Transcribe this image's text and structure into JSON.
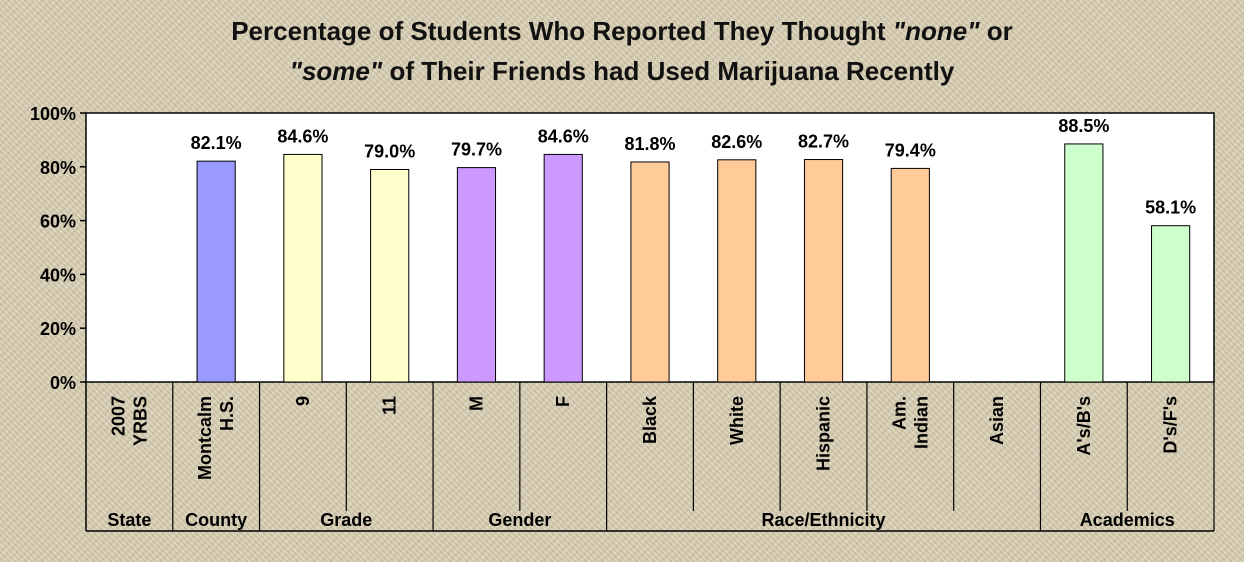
{
  "chart_data": {
    "type": "bar",
    "title_segments": [
      [
        {
          "text": "Percentage of Students Who Reported They Thought ",
          "italic": false
        },
        {
          "text": "\"none\"",
          "italic": true
        },
        {
          "text": " or",
          "italic": false
        }
      ],
      [
        {
          "text": "\"some\"",
          "italic": true
        },
        {
          "text": " of Their Friends had Used Marijuana Recently",
          "italic": false
        }
      ]
    ],
    "ylim": [
      0,
      100
    ],
    "y_ticks": [
      "0%",
      "20%",
      "40%",
      "60%",
      "80%",
      "100%"
    ],
    "y_tick_values": [
      0,
      20,
      40,
      60,
      80,
      100
    ],
    "categories": [
      {
        "lines": [
          "2007",
          "YRBS"
        ],
        "value": null,
        "label": "",
        "color": null
      },
      {
        "lines": [
          "Montcalm",
          "H.S."
        ],
        "value": 82.1,
        "label": "82.1%",
        "color": "#9999ff"
      },
      {
        "lines": [
          "9"
        ],
        "value": 84.6,
        "label": "84.6%",
        "color": "#ffffcc"
      },
      {
        "lines": [
          "11"
        ],
        "value": 79.0,
        "label": "79.0%",
        "color": "#ffffcc"
      },
      {
        "lines": [
          "M"
        ],
        "value": 79.7,
        "label": "79.7%",
        "color": "#cc99ff"
      },
      {
        "lines": [
          "F"
        ],
        "value": 84.6,
        "label": "84.6%",
        "color": "#cc99ff"
      },
      {
        "lines": [
          "Black"
        ],
        "value": 81.8,
        "label": "81.8%",
        "color": "#ffcc99"
      },
      {
        "lines": [
          "White"
        ],
        "value": 82.6,
        "label": "82.6%",
        "color": "#ffcc99"
      },
      {
        "lines": [
          "Hispanic"
        ],
        "value": 82.7,
        "label": "82.7%",
        "color": "#ffcc99"
      },
      {
        "lines": [
          "Am.",
          "Indian"
        ],
        "value": 79.4,
        "label": "79.4%",
        "color": "#ffcc99"
      },
      {
        "lines": [
          "Asian"
        ],
        "value": null,
        "label": "",
        "color": null
      },
      {
        "lines": [
          "A's/B's"
        ],
        "value": 88.5,
        "label": "88.5%",
        "color": "#ccffcc"
      },
      {
        "lines": [
          "D's/F's"
        ],
        "value": 58.1,
        "label": "58.1%",
        "color": "#ccffcc"
      }
    ],
    "groups": [
      {
        "label": "State",
        "span": 1
      },
      {
        "label": "County",
        "span": 1
      },
      {
        "label": "Grade",
        "span": 2
      },
      {
        "label": "Gender",
        "span": 2
      },
      {
        "label": "Race/Ethnicity",
        "span": 5
      },
      {
        "label": "Academics",
        "span": 2
      }
    ],
    "grid": false,
    "legend": "none"
  }
}
